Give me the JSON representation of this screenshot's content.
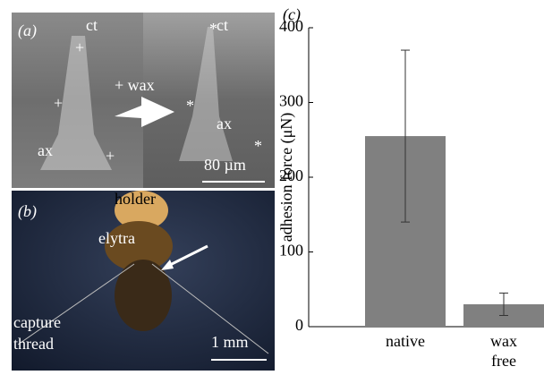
{
  "panels": {
    "a": {
      "label": "(a)",
      "texts": [
        "ct",
        "+",
        "+",
        "+ wax",
        "ax",
        "+",
        "ct",
        "*",
        "*",
        "ax",
        "*",
        "80 µm"
      ]
    },
    "b": {
      "label": "(b)",
      "texts": [
        "holder",
        "elytra",
        "capture",
        "thread",
        "1 mm"
      ]
    }
  },
  "chart_data": {
    "type": "bar",
    "panel_label": "(c)",
    "ylabel": "adhesion force (μN)",
    "categories": [
      "native",
      "wax free"
    ],
    "values": [
      255,
      30
    ],
    "errors": [
      115,
      15
    ],
    "color": "#808080",
    "ylim": [
      0,
      400
    ],
    "yticks": [
      0,
      100,
      200,
      300,
      400
    ]
  }
}
